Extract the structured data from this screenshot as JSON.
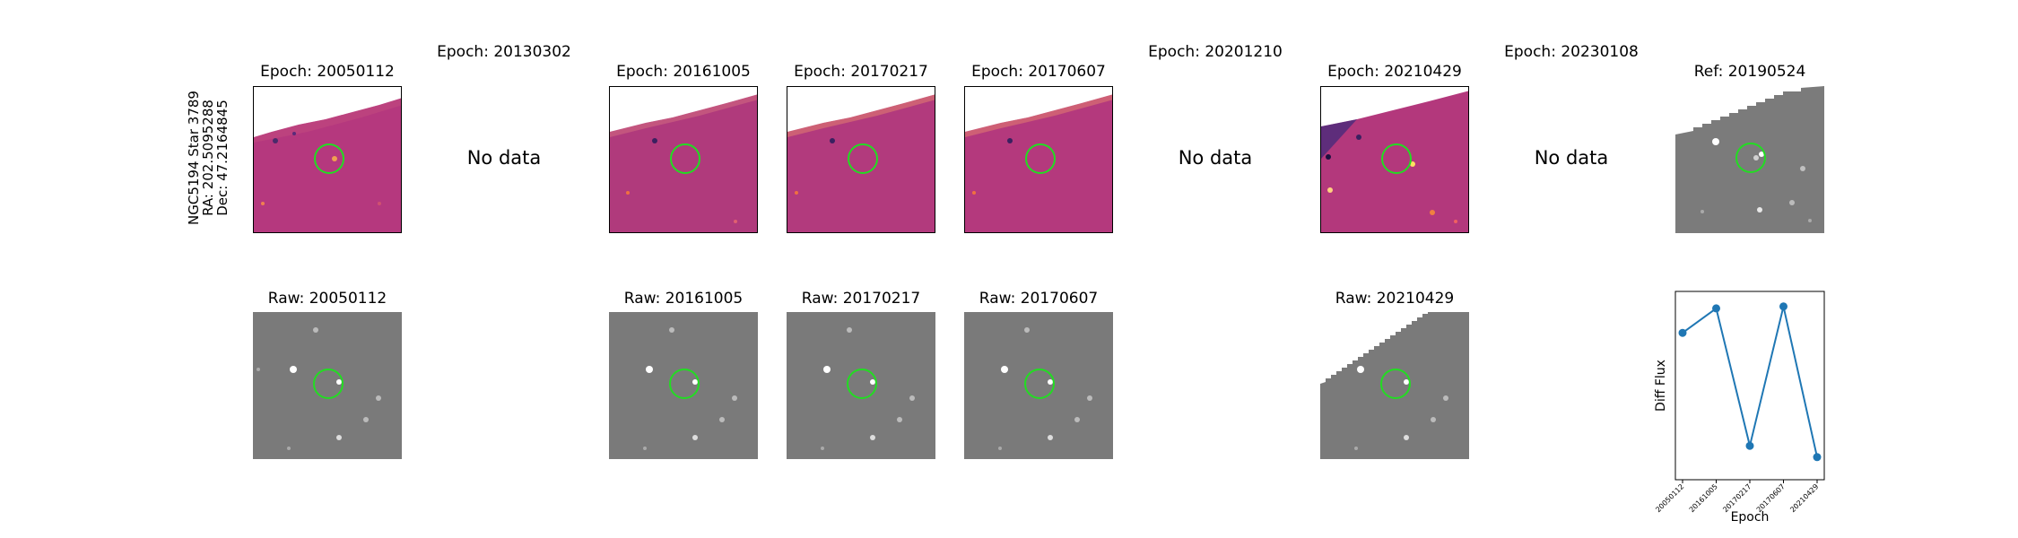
{
  "star": {
    "name": "NGC5194 Star 3789",
    "ra": "RA: 202.5095288",
    "dec": "Dec: 47.2164845"
  },
  "no_data_label": "No data",
  "diff_titles": [
    "Epoch: 20050112",
    "Epoch: 20130302",
    "Epoch: 20161005",
    "Epoch: 20170217",
    "Epoch: 20170607",
    "Epoch: 20201210",
    "Epoch: 20210429",
    "Epoch: 20230108"
  ],
  "ref_title": "Ref: 20190524",
  "raw_titles": [
    "Raw: 20050112",
    "Raw: 20161005",
    "Raw: 20170217",
    "Raw: 20170607",
    "Raw: 20210429"
  ],
  "colors": {
    "diff_bg": "#b5387e",
    "raw_bg": "#7a7a7a",
    "circle": "#22dd22",
    "line": "#1f77b4"
  },
  "chart_data": {
    "type": "line",
    "title": "",
    "xlabel": "Epoch",
    "ylabel": "Diff Flux",
    "x_tick_labels": [
      "20050112",
      "20161005",
      "20170217",
      "20170607",
      "20210429"
    ],
    "series": [
      {
        "values": [
          0.78,
          0.91,
          0.18,
          0.92,
          0.12
        ]
      }
    ],
    "ylim": [
      0.0,
      1.0
    ],
    "y_ticks_visible": false,
    "grid": false
  }
}
